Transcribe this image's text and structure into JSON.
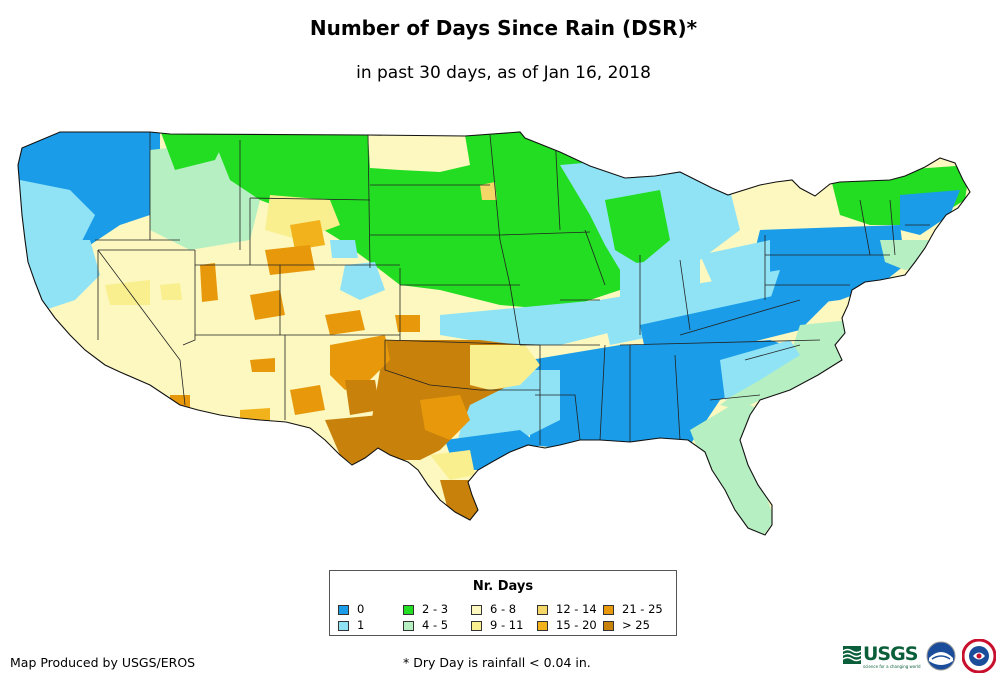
{
  "title": "Number of Days Since Rain (DSR)*",
  "subtitle": "in past 30 days, as of Jan 16, 2018",
  "legend": {
    "title": "Nr. Days",
    "items": [
      {
        "label": "0",
        "color": "#1a9ce8"
      },
      {
        "label": "1",
        "color": "#8fe3f5"
      },
      {
        "label": "2 - 3",
        "color": "#22dd22"
      },
      {
        "label": "4 - 5",
        "color": "#b6f0c2"
      },
      {
        "label": "6 - 8",
        "color": "#fcf8bf"
      },
      {
        "label": "9 - 11",
        "color": "#f9ef8e"
      },
      {
        "label": "12 - 14",
        "color": "#f4d766"
      },
      {
        "label": "15 - 20",
        "color": "#f2b21c"
      },
      {
        "label": "21 - 25",
        "color": "#e8990b"
      },
      {
        "label": "> 25",
        "color": "#c8810b"
      }
    ]
  },
  "footer": {
    "producer": "Map Produced by USGS/EROS",
    "note": "* Dry Day is rainfall < 0.04 in."
  },
  "logos": {
    "usgs_text": "USGS",
    "usgs_tagline": "science for a changing world",
    "usgs_color": "#0a5f3a",
    "noaa_icon": "noaa-logo-icon",
    "nws_icon": "nws-logo-icon"
  }
}
